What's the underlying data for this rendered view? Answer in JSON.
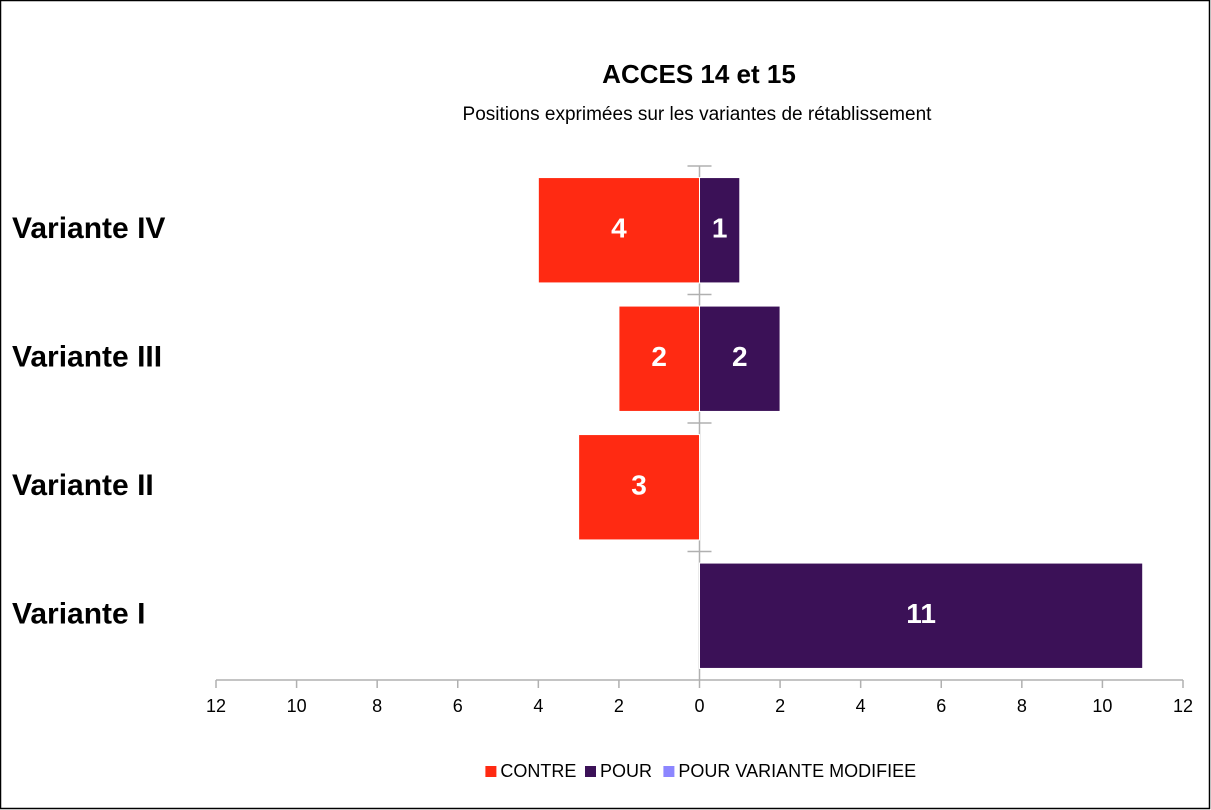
{
  "chart_data": {
    "type": "diverging_bar",
    "title": "ACCES 14 et 15",
    "subtitle": "Positions exprimées sur les variantes de rétablissement",
    "categories": [
      "Variante IV",
      "Variante III",
      "Variante II",
      "Variante I"
    ],
    "series": [
      {
        "name": "CONTRE",
        "color": "#ff2a12",
        "side": "left",
        "values": [
          4,
          2,
          3,
          null
        ]
      },
      {
        "name": "POUR",
        "color": "#3b1157",
        "side": "right",
        "values": [
          1,
          2,
          null,
          11
        ]
      },
      {
        "name": "POUR VARIANTE MODIFIEE",
        "color": "#8c86ff",
        "side": "right",
        "values": [
          null,
          null,
          null,
          null
        ]
      }
    ],
    "xlim": [
      -12,
      12
    ],
    "xticks": [
      {
        "value": -12,
        "label": "12"
      },
      {
        "value": -10,
        "label": "10"
      },
      {
        "value": -8,
        "label": "8"
      },
      {
        "value": -6,
        "label": "6"
      },
      {
        "value": -4,
        "label": "4"
      },
      {
        "value": -2,
        "label": "2"
      },
      0,
      2,
      4,
      6,
      8,
      10,
      12
    ],
    "legend": "bottom"
  }
}
